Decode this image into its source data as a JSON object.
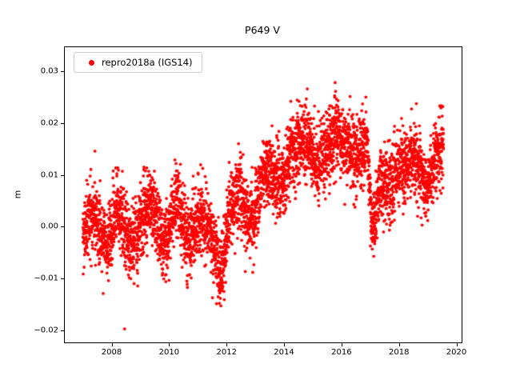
{
  "figure": {
    "background": "#ffffff"
  },
  "chart_data": {
    "type": "scatter",
    "title": "P649 V",
    "xlabel": "",
    "ylabel": "m",
    "series_name": "repro2018a (IGS14)",
    "legend_position": "upper left",
    "marker_color": "#ff0000",
    "marker_style": "dot",
    "grid": false,
    "xlim": [
      2006.37,
      2020.18
    ],
    "ylim": [
      -0.0223,
      0.0346
    ],
    "xticks": [
      2008,
      2010,
      2012,
      2014,
      2016,
      2018,
      2020
    ],
    "xtick_labels": [
      "2008",
      "2010",
      "2012",
      "2014",
      "2016",
      "2018",
      "2020"
    ],
    "yticks": [
      -0.02,
      -0.01,
      0.0,
      0.01,
      0.02,
      0.03
    ],
    "ytick_labels": [
      "−0.02",
      "−0.01",
      "0.00",
      "0.01",
      "0.02",
      "0.03"
    ],
    "model": {
      "description": "Daily GPS vertical position scatter: near-zero seasonal signal 2007-2011.5, uplift beginning 2012 reaching ~0.015-0.02 m by 2015-2016, sharp transient drop to ~-0.005 m in early 2017, recovery to ~0.010-0.016 m through mid-2019",
      "x_start": 2007.0,
      "x_end": 2019.55,
      "points_per_year": 360,
      "seed": 20180649,
      "noise_sd": 0.0035,
      "seasonal_amplitude": 0.002,
      "seasonal_phase": 0.08,
      "clip": [
        -0.0215,
        0.0325
      ],
      "trend_points": [
        [
          2007.0,
          -0.001
        ],
        [
          2007.4,
          0.001
        ],
        [
          2007.8,
          -0.002
        ],
        [
          2008.2,
          0.002
        ],
        [
          2008.6,
          -0.003
        ],
        [
          2009.0,
          0.002
        ],
        [
          2009.4,
          0.003
        ],
        [
          2009.8,
          -0.002
        ],
        [
          2010.2,
          0.003
        ],
        [
          2010.6,
          -0.002
        ],
        [
          2011.0,
          0.003
        ],
        [
          2011.4,
          -0.003
        ],
        [
          2011.8,
          -0.007
        ],
        [
          2012.1,
          0.002
        ],
        [
          2012.5,
          0.006
        ],
        [
          2012.9,
          0.002
        ],
        [
          2013.2,
          0.008
        ],
        [
          2013.6,
          0.011
        ],
        [
          2014.0,
          0.01
        ],
        [
          2014.4,
          0.014
        ],
        [
          2014.85,
          0.019
        ],
        [
          2015.15,
          0.01
        ],
        [
          2015.5,
          0.014
        ],
        [
          2015.8,
          0.021
        ],
        [
          2016.1,
          0.015
        ],
        [
          2016.5,
          0.012
        ],
        [
          2016.88,
          0.02
        ],
        [
          2017.08,
          -0.001
        ],
        [
          2017.35,
          0.006
        ],
        [
          2017.7,
          0.01
        ],
        [
          2018.0,
          0.013
        ],
        [
          2018.3,
          0.01
        ],
        [
          2018.65,
          0.014
        ],
        [
          2019.0,
          0.008
        ],
        [
          2019.3,
          0.012
        ],
        [
          2019.55,
          0.016
        ]
      ],
      "outliers": [
        [
          2008.45,
          -0.0197
        ]
      ]
    }
  }
}
